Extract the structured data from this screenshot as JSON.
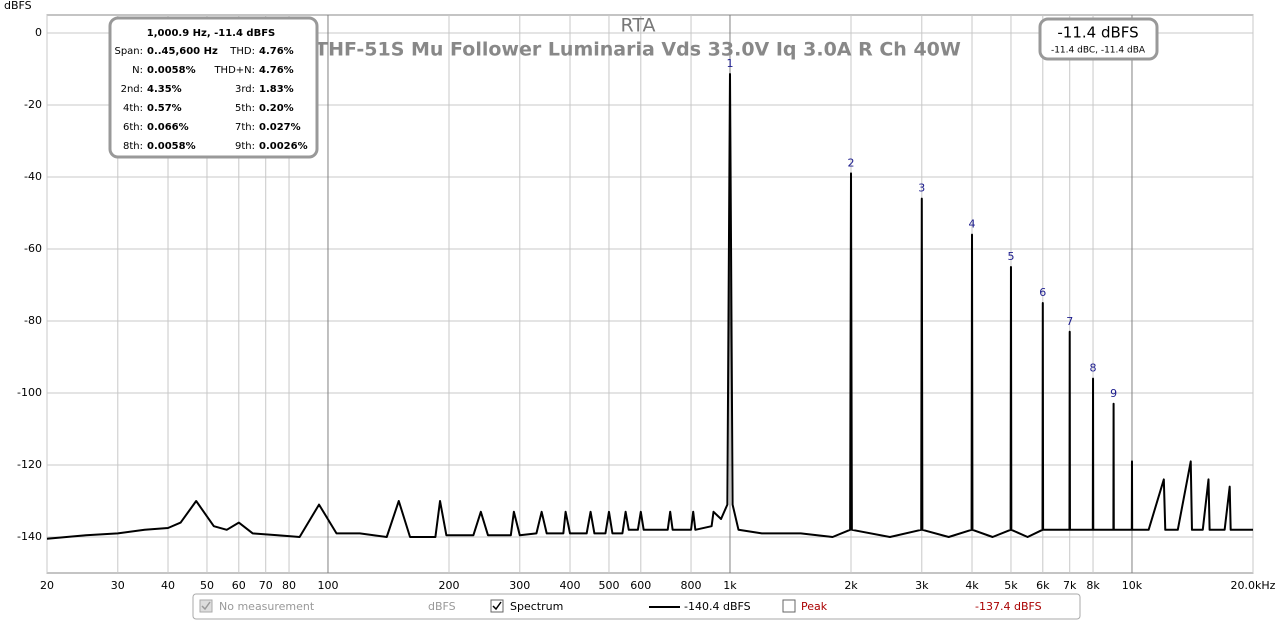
{
  "chart_data": {
    "type": "line",
    "title": "RTA",
    "subtitle": "THF-51S Mu Follower Luminaria Vds 33.0V Iq 3.0A R Ch 40W",
    "y_label": "dBFS",
    "log_x": true,
    "grid": true,
    "xlim": [
      20,
      20000
    ],
    "ylim": [
      -150,
      5
    ],
    "yticks": [
      0,
      -20,
      -40,
      -60,
      -80,
      -100,
      -120,
      -140
    ],
    "xticks": [
      20,
      30,
      40,
      50,
      60,
      70,
      80,
      100,
      200,
      300,
      400,
      500,
      600,
      800,
      {
        "value": 1000,
        "label": "1k"
      },
      {
        "value": 2000,
        "label": "2k"
      },
      {
        "value": 3000,
        "label": "3k"
      },
      {
        "value": 4000,
        "label": "4k"
      },
      {
        "value": 5000,
        "label": "5k"
      },
      {
        "value": 6000,
        "label": "6k"
      },
      {
        "value": 7000,
        "label": "7k"
      },
      {
        "value": 8000,
        "label": "8k"
      },
      {
        "value": 10000,
        "label": "10k"
      },
      {
        "value": 20000,
        "label": "20.0kHz"
      }
    ],
    "series": [
      {
        "name": "Spectrum",
        "color": "#000000",
        "x": [
          20,
          25,
          30,
          35,
          40,
          43,
          47,
          52,
          56,
          60,
          65,
          75,
          85,
          95,
          105,
          120,
          140,
          150,
          160,
          185,
          190,
          197,
          230,
          240,
          250,
          285,
          290,
          300,
          330,
          340,
          350,
          385,
          390,
          400,
          440,
          450,
          460,
          490,
          500,
          510,
          540,
          550,
          560,
          590,
          600,
          610,
          700,
          710,
          720,
          800,
          810,
          820,
          900,
          910,
          950,
          985,
          1000,
          1015,
          1050,
          1200,
          1500,
          1800,
          1990,
          2000,
          2010,
          2500,
          2990,
          3000,
          3010,
          3500,
          3990,
          4000,
          4010,
          4500,
          4990,
          5000,
          5010,
          5500,
          5990,
          6000,
          6010,
          6990,
          7000,
          7010,
          7990,
          8000,
          8010,
          8990,
          9000,
          9010,
          9990,
          10000,
          10010,
          11000,
          12000,
          12100,
          13000,
          14000,
          14100,
          15000,
          15500,
          15600,
          17000,
          17500,
          17600,
          20000
        ],
        "values": [
          -140.5,
          -139.5,
          -139,
          -138,
          -137.5,
          -136,
          -130,
          -137,
          -138,
          -136,
          -139,
          -139.5,
          -140,
          -131,
          -139,
          -139,
          -140,
          -130,
          -140,
          -140,
          -130,
          -139.5,
          -139.5,
          -133,
          -139.5,
          -139.5,
          -133,
          -139.5,
          -139,
          -133,
          -139,
          -139,
          -133,
          -139,
          -139,
          -133,
          -139,
          -139,
          -133,
          -139,
          -139,
          -133,
          -138,
          -138,
          -133,
          -138,
          -138,
          -133,
          -138,
          -138,
          -133,
          -138,
          -137,
          -133,
          -135,
          -131,
          -11.4,
          -131,
          -138,
          -139,
          -139,
          -140,
          -138,
          -39,
          -138,
          -140,
          -138,
          -46,
          -138,
          -140,
          -138,
          -56,
          -138,
          -140,
          -138,
          -65,
          -138,
          -140,
          -138,
          -75,
          -138,
          -138,
          -83,
          -138,
          -138,
          -96,
          -138,
          -138,
          -103,
          -138,
          -138,
          -119,
          -138,
          -138,
          -124,
          -138,
          -138,
          -119,
          -138,
          -138,
          -124,
          -138,
          -138,
          -126,
          -138,
          -138
        ]
      }
    ],
    "annotations": [
      {
        "text": "1",
        "x": 1000,
        "y": -11.4
      },
      {
        "text": "2",
        "x": 2000,
        "y": -39
      },
      {
        "text": "3",
        "x": 3000,
        "y": -46
      },
      {
        "text": "4",
        "x": 4000,
        "y": -56
      },
      {
        "text": "5",
        "x": 5000,
        "y": -65
      },
      {
        "text": "6",
        "x": 6000,
        "y": -75
      },
      {
        "text": "7",
        "x": 7000,
        "y": -83
      },
      {
        "text": "8",
        "x": 8000,
        "y": -96
      },
      {
        "text": "9",
        "x": 9000,
        "y": -103
      }
    ],
    "info_box": {
      "header": "1,000.9 Hz, -11.4 dBFS",
      "rows": [
        [
          "Span:",
          "0..45,600 Hz",
          "THD:",
          "4.76%"
        ],
        [
          "N:",
          "0.0058%",
          "THD+N:",
          "4.76%"
        ],
        [
          "2nd:",
          "4.35%",
          "3rd:",
          "1.83%"
        ],
        [
          "4th:",
          "0.57%",
          "5th:",
          "0.20%"
        ],
        [
          "6th:",
          "0.066%",
          "7th:",
          "0.027%"
        ],
        [
          "8th:",
          "0.0058%",
          "9th:",
          "0.0026%"
        ]
      ]
    },
    "level_box": {
      "level": "-11.4 dBFS",
      "weighted": "-11.4 dBC, -11.4 dBA"
    },
    "status_bar": {
      "no_measurement": "No measurement",
      "units": "dBFS",
      "spectrum_level": "-140.4 dBFS",
      "peak": "Peak",
      "peak_level": "-137.4 dBFS"
    }
  }
}
